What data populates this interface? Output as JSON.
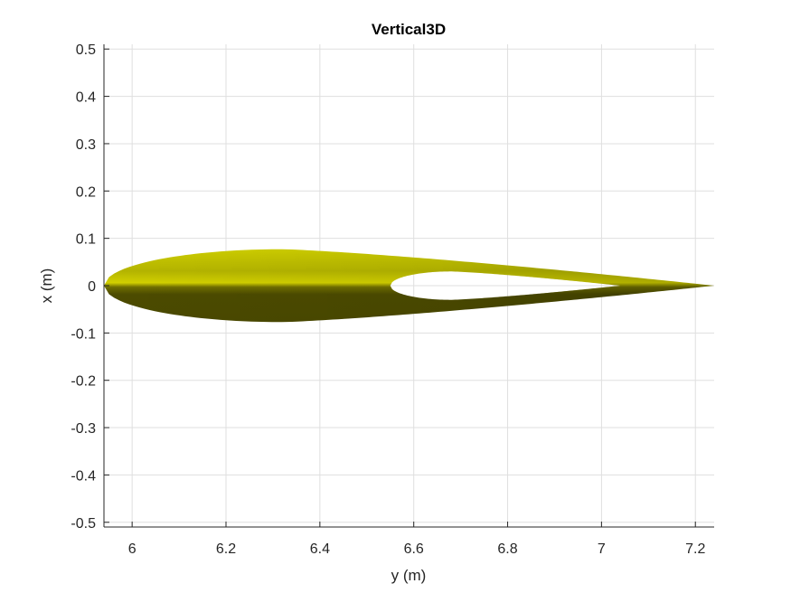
{
  "chart_data": {
    "type": "area",
    "title": "Vertical3D",
    "xlabel": "y (m)",
    "ylabel": "x (m)",
    "xlim": [
      5.94,
      7.24
    ],
    "ylim": [
      -0.51,
      0.51
    ],
    "xticks": [
      6,
      6.2,
      6.4,
      6.6,
      6.8,
      7,
      7.2
    ],
    "xtick_labels": [
      "6",
      "6.2",
      "6.4",
      "6.6",
      "6.8",
      "7",
      "7.2"
    ],
    "yticks": [
      0.5,
      0.4,
      0.3,
      0.2,
      0.1,
      0,
      -0.1,
      -0.2,
      -0.3,
      -0.4,
      -0.5
    ],
    "ytick_labels": [
      "0.5",
      "0.4",
      "0.3",
      "0.2",
      "0.1",
      "0",
      "-0.1",
      "-0.2",
      "-0.3",
      "-0.4",
      "-0.5"
    ],
    "grid": true,
    "series": [
      {
        "color": "#c8c400",
        "outer_profile": {
          "leading_edge": [
            5.94,
            0
          ],
          "trailing_edge": [
            7.24,
            0
          ],
          "max_thickness_x": 6.32,
          "half_thickness": 0.077
        },
        "cutout": {
          "left": [
            6.55,
            0
          ],
          "right": [
            7.04,
            0
          ],
          "max_x": 6.68,
          "half_thickness": 0.03
        }
      }
    ]
  }
}
